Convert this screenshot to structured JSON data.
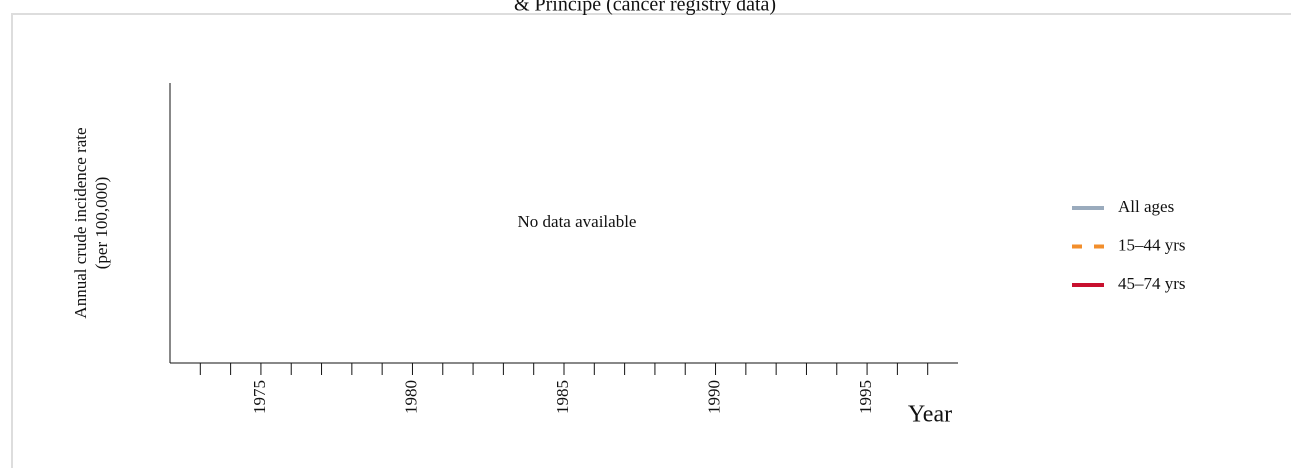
{
  "chart_data": {
    "type": "line",
    "title": "& Principe (cancer registry data)",
    "y_label": [
      "Annual crude incidence rate",
      "(per 100,000)"
    ],
    "x_label": "Year",
    "annotation": "No data available",
    "x": [],
    "series": [
      {
        "name": "All ages",
        "color": "#9aabbd",
        "dash": false,
        "values": []
      },
      {
        "name": "15–44 yrs",
        "color": "#f28e2b",
        "dash": true,
        "values": []
      },
      {
        "name": "45–74 yrs",
        "color": "#c8102e",
        "dash": false,
        "values": []
      }
    ],
    "xlim": [
      1972,
      1998
    ],
    "xticks": [
      1975,
      1980,
      1985,
      1990,
      1995
    ],
    "minor_xticks": [
      1973,
      1974,
      1975,
      1976,
      1977,
      1978,
      1979,
      1980,
      1981,
      1982,
      1983,
      1984,
      1985,
      1986,
      1987,
      1988,
      1989,
      1990,
      1991,
      1992,
      1993,
      1994,
      1995,
      1996,
      1997
    ],
    "legend": "right"
  }
}
